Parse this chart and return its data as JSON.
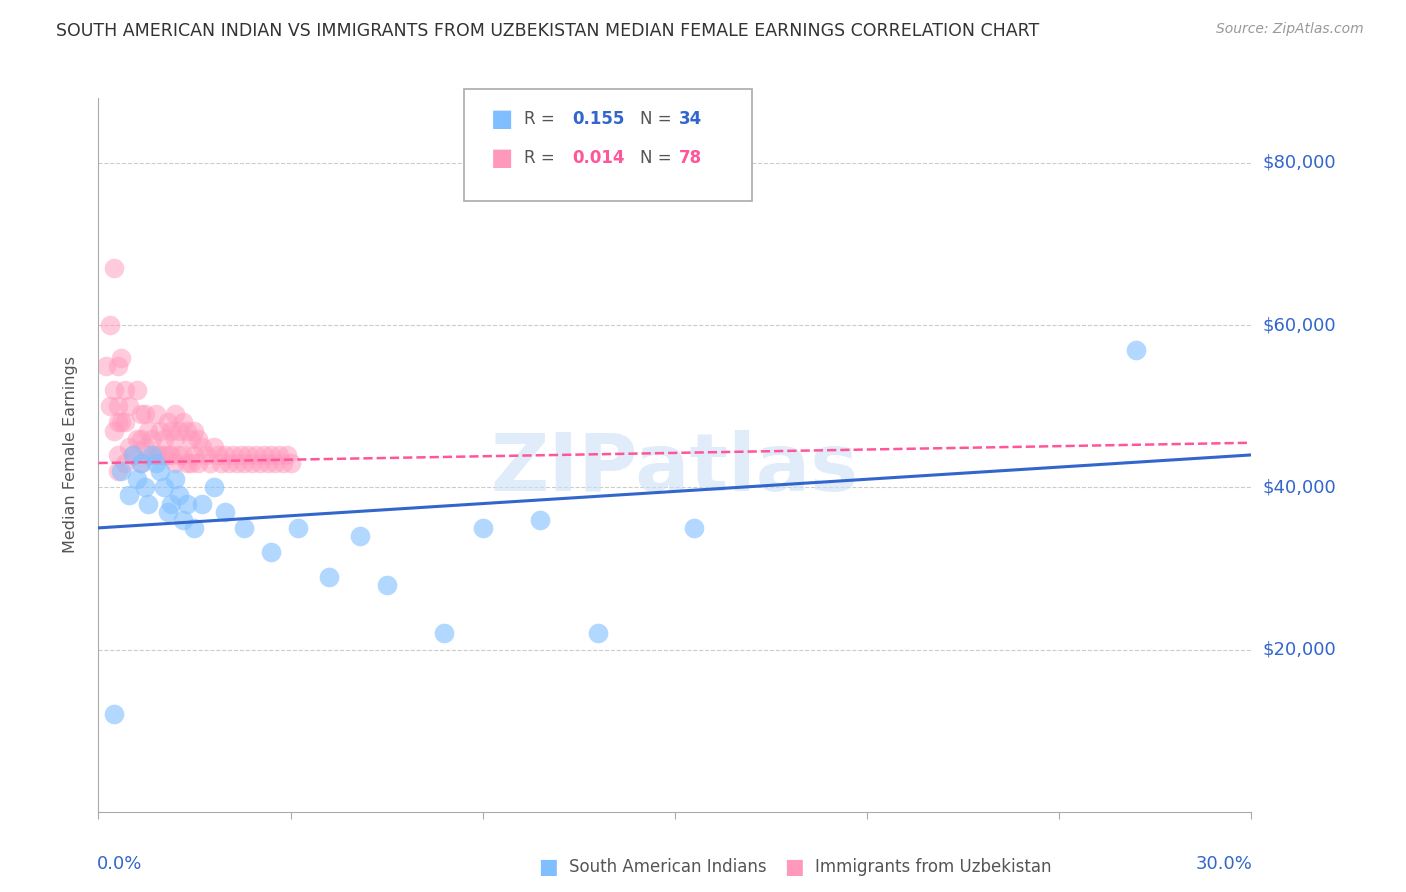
{
  "title": "SOUTH AMERICAN INDIAN VS IMMIGRANTS FROM UZBEKISTAN MEDIAN FEMALE EARNINGS CORRELATION CHART",
  "source": "Source: ZipAtlas.com",
  "ylabel": "Median Female Earnings",
  "right_ytick_labels": [
    "$80,000",
    "$60,000",
    "$40,000",
    "$20,000"
  ],
  "right_ytick_values": [
    80000,
    60000,
    40000,
    20000
  ],
  "ylim": [
    0,
    88000
  ],
  "xlim": [
    0.0,
    0.3
  ],
  "legend_r1": "R = ",
  "legend_v1": "0.155",
  "legend_n1_label": "N = ",
  "legend_n1": "34",
  "legend_r2": "R = ",
  "legend_v2": "0.014",
  "legend_n2_label": "N = ",
  "legend_n2": "78",
  "blue_color": "#7fbfff",
  "pink_color": "#ff99bb",
  "line_blue": "#3366cc",
  "line_pink": "#ff5599",
  "axis_label_color": "#3366cc",
  "watermark": "ZIPatlas",
  "blue_scatter_x": [
    0.004,
    0.006,
    0.008,
    0.009,
    0.01,
    0.011,
    0.012,
    0.013,
    0.014,
    0.015,
    0.016,
    0.017,
    0.018,
    0.019,
    0.02,
    0.021,
    0.022,
    0.023,
    0.025,
    0.027,
    0.03,
    0.033,
    0.038,
    0.045,
    0.052,
    0.06,
    0.068,
    0.075,
    0.09,
    0.1,
    0.115,
    0.13,
    0.155,
    0.27
  ],
  "blue_scatter_y": [
    12000,
    42000,
    39000,
    44000,
    41000,
    43000,
    40000,
    38000,
    44000,
    43000,
    42000,
    40000,
    37000,
    38000,
    41000,
    39000,
    36000,
    38000,
    35000,
    38000,
    40000,
    37000,
    35000,
    32000,
    35000,
    29000,
    34000,
    28000,
    22000,
    35000,
    36000,
    22000,
    35000,
    57000
  ],
  "pink_scatter_x": [
    0.002,
    0.003,
    0.003,
    0.004,
    0.004,
    0.004,
    0.005,
    0.005,
    0.005,
    0.005,
    0.005,
    0.006,
    0.006,
    0.007,
    0.007,
    0.007,
    0.008,
    0.008,
    0.009,
    0.01,
    0.01,
    0.011,
    0.011,
    0.011,
    0.012,
    0.012,
    0.013,
    0.013,
    0.014,
    0.015,
    0.015,
    0.016,
    0.016,
    0.017,
    0.017,
    0.018,
    0.018,
    0.019,
    0.019,
    0.02,
    0.02,
    0.02,
    0.021,
    0.021,
    0.022,
    0.022,
    0.023,
    0.023,
    0.024,
    0.024,
    0.025,
    0.025,
    0.026,
    0.026,
    0.027,
    0.028,
    0.029,
    0.03,
    0.031,
    0.032,
    0.033,
    0.034,
    0.035,
    0.036,
    0.037,
    0.038,
    0.039,
    0.04,
    0.041,
    0.042,
    0.043,
    0.044,
    0.045,
    0.046,
    0.047,
    0.048,
    0.049,
    0.05
  ],
  "pink_scatter_y": [
    55000,
    60000,
    50000,
    52000,
    67000,
    47000,
    55000,
    50000,
    48000,
    44000,
    42000,
    56000,
    48000,
    52000,
    48000,
    43000,
    50000,
    45000,
    44000,
    52000,
    46000,
    49000,
    46000,
    43000,
    49000,
    45000,
    47000,
    44000,
    46000,
    49000,
    44000,
    47000,
    44000,
    46000,
    44000,
    48000,
    44000,
    47000,
    44000,
    49000,
    46000,
    43000,
    47000,
    44000,
    48000,
    44000,
    47000,
    43000,
    46000,
    43000,
    47000,
    44000,
    46000,
    43000,
    45000,
    44000,
    43000,
    45000,
    44000,
    43000,
    44000,
    43000,
    44000,
    43000,
    44000,
    43000,
    44000,
    43000,
    44000,
    43000,
    44000,
    43000,
    44000,
    43000,
    44000,
    43000,
    44000,
    43000
  ]
}
